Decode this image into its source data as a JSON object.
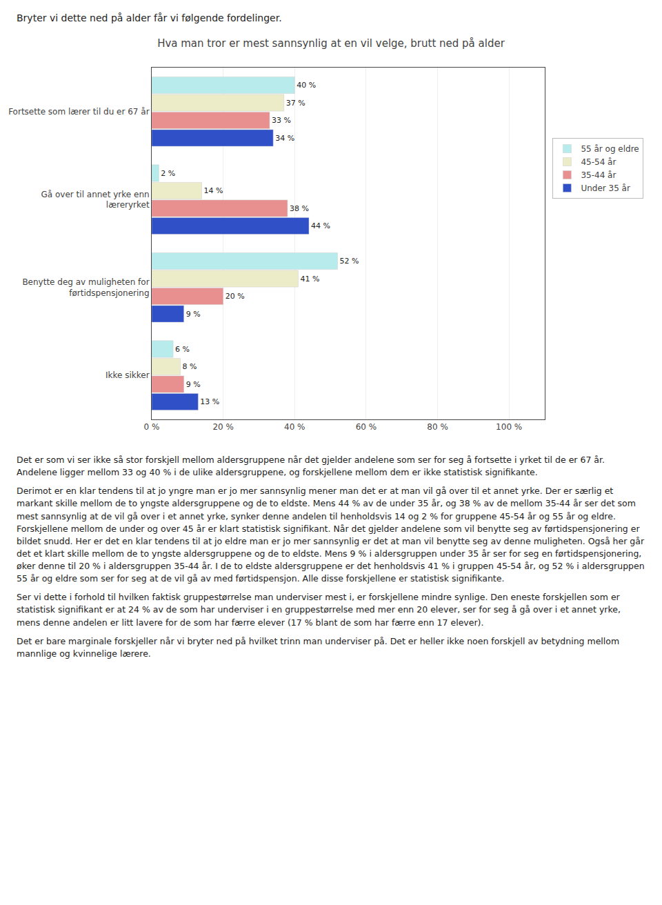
{
  "chart_data": {
    "type": "bar",
    "orientation": "horizontal",
    "title": "Hva man tror er mest sannsynlig at en vil velge, brutt ned på alder",
    "subtitle": "Bryter vi dette ned på alder får vi følgende fordelinger.",
    "categories": [
      "Fortsette som lærer til du er 67 år",
      "Gå over til annet yrke enn\nlæreryrket",
      "Benytte deg av muligheten for\nførtidspensjonering",
      "Ikke sikker"
    ],
    "series": [
      {
        "name": "55 år og eldre",
        "color": "#b8ecec",
        "values": [
          40,
          2,
          52,
          6
        ],
        "value_labels": [
          "40 %",
          "2 %",
          "52 %",
          "6 %"
        ]
      },
      {
        "name": "45-54 år",
        "color": "#ececc8",
        "values": [
          37,
          14,
          41,
          8
        ],
        "value_labels": [
          "37 %",
          "14 %",
          "41 %",
          "8 %"
        ]
      },
      {
        "name": "35-44 år",
        "color": "#e89090",
        "values": [
          33,
          38,
          20,
          9
        ],
        "value_labels": [
          "33 %",
          "38 %",
          "20 %",
          "9 %"
        ]
      },
      {
        "name": "Under 35 år",
        "color": "#3050c8",
        "values": [
          34,
          44,
          9,
          13
        ],
        "value_labels": [
          "34 %",
          "44 %",
          "9 %",
          "13 %"
        ]
      }
    ],
    "xlim": [
      0,
      110
    ],
    "xticks": [
      {
        "value": 0,
        "label": "0 %"
      },
      {
        "value": 20,
        "label": "20 %"
      },
      {
        "value": 40,
        "label": "40 %"
      },
      {
        "value": 60,
        "label": "60 %"
      },
      {
        "value": 80,
        "label": "80 %"
      },
      {
        "value": 100,
        "label": "100 %"
      }
    ],
    "grid": true,
    "legend": "right",
    "data_labels": true,
    "annotations": [
      "Det er som vi ser ikke så stor forskjell mellom aldersgruppene når det gjelder andelene som ser for seg å fortsette i yrket til de er 67 år. Andelene ligger mellom 33 og 40 % i de ulike aldersgruppene, og forskjellene mellom dem er ikke statistisk signifikante.",
      "Derimot er en klar tendens til at jo yngre man er jo mer sannsynlig mener man det er at man vil gå over til et annet yrke. Der er særlig et markant skille mellom de to yngste aldersgruppene og de to eldste. Mens 44 % av de under 35 år, og 38 % av de mellom 35-44 år ser det som mest sannsynlig at de vil gå over i et annet yrke, synker denne andelen til henholdsvis 14 og 2 % for gruppene 45-54 år og 55 år og eldre. Forskjellene mellom de under og over 45 år er klart statistisk signifikant. Når det gjelder andelene som vil benytte seg av førtidspensjonering er bildet snudd. Her er det en klar tendens til at jo eldre man er jo mer sannsynlig er det at man vil benytte seg av denne muligheten. Også her går det et klart skille mellom de to yngste aldersgruppene og de to eldste. Mens 9 % i aldersgruppen under 35 år ser for seg en førtidspensjonering, øker denne til 20 % i aldersgruppen 35-44 år. I de to eldste aldersgruppene er det henholdsvis 41 % i gruppen 45-54 år, og 52 % i aldersgruppen 55 år og eldre som ser for seg at de vil gå av med førtidspensjon. Alle disse forskjellene er statistisk signifikante.",
      "Ser vi dette i forhold til hvilken faktisk gruppestørrelse man underviser mest i, er forskjellene mindre synlige. Den eneste forskjellen som er statistisk signifikant er at 24 % av de som har underviser i en gruppestørrelse med mer enn 20 elever, ser for seg å gå over i et annet yrke, mens denne andelen er litt lavere for de som har færre elever (17 % blant de som har færre enn 17 elever).",
      "Det er bare marginale forskjeller når vi bryter ned på hvilket trinn man underviser på. Det er heller ikke noen forskjell av betydning mellom mannlige og kvinnelige lærere."
    ]
  }
}
